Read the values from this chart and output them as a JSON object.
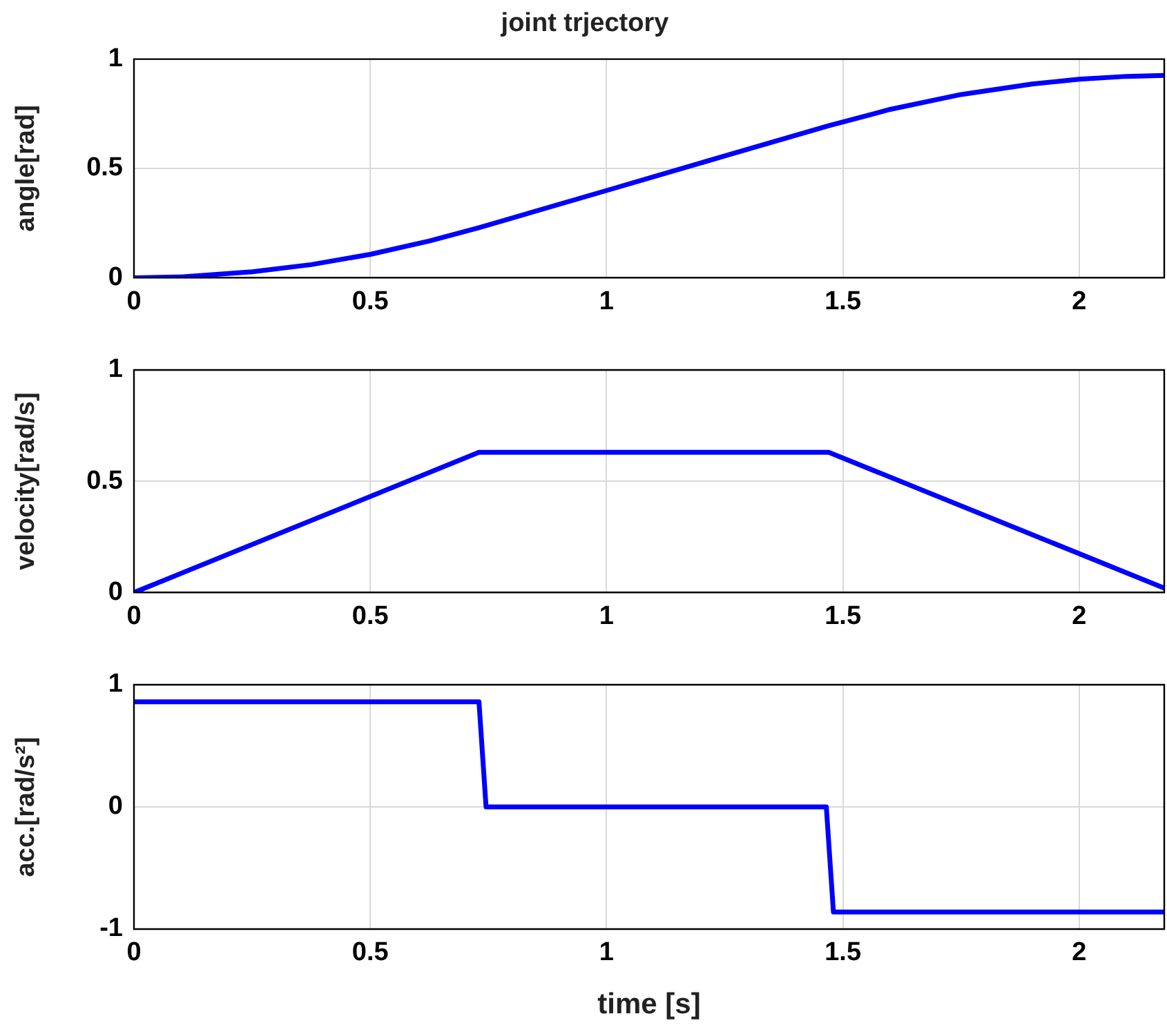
{
  "chart_data": [
    {
      "type": "line",
      "title": "joint trjectory",
      "ylabel": "angle[rad]",
      "color": "#0000ff",
      "marker": "none",
      "grid": true,
      "x": [
        0,
        0.1,
        0.25,
        0.375,
        0.5,
        0.625,
        0.73,
        1.0,
        1.25,
        1.47,
        1.6,
        1.75,
        1.9,
        2.0,
        2.1,
        2.18
      ],
      "values": [
        0,
        0.004,
        0.027,
        0.06,
        0.107,
        0.168,
        0.229,
        0.399,
        0.557,
        0.695,
        0.77,
        0.838,
        0.886,
        0.908,
        0.921,
        0.925
      ],
      "xlim": [
        0,
        2.18
      ],
      "xticks": [
        0,
        0.5,
        1,
        1.5,
        2
      ],
      "ylim": [
        0,
        1
      ],
      "yticks": [
        0,
        0.5,
        1
      ]
    },
    {
      "type": "line",
      "ylabel": "velocity[rad/s]",
      "color": "#0000ff",
      "marker": "none",
      "grid": true,
      "x": [
        0,
        0.73,
        1.47,
        2.18
      ],
      "values": [
        0,
        0.63,
        0.63,
        0.02
      ],
      "xlim": [
        0,
        2.18
      ],
      "xticks": [
        0,
        0.5,
        1,
        1.5,
        2
      ],
      "ylim": [
        0,
        1
      ],
      "yticks": [
        0,
        0.5,
        1
      ]
    },
    {
      "type": "line",
      "xlabel": "time [s]",
      "ylabel": "acc.[rad/s²]",
      "color": "#0000ff",
      "marker": "none",
      "grid": true,
      "x": [
        0,
        0.73,
        0.745,
        1.465,
        1.48,
        2.18
      ],
      "values": [
        0.86,
        0.86,
        0,
        0,
        -0.86,
        -0.86
      ],
      "xlim": [
        0,
        2.18
      ],
      "xticks": [
        0,
        0.5,
        1,
        1.5,
        2
      ],
      "ylim": [
        -1,
        1
      ],
      "yticks": [
        -1,
        0,
        1
      ]
    }
  ]
}
